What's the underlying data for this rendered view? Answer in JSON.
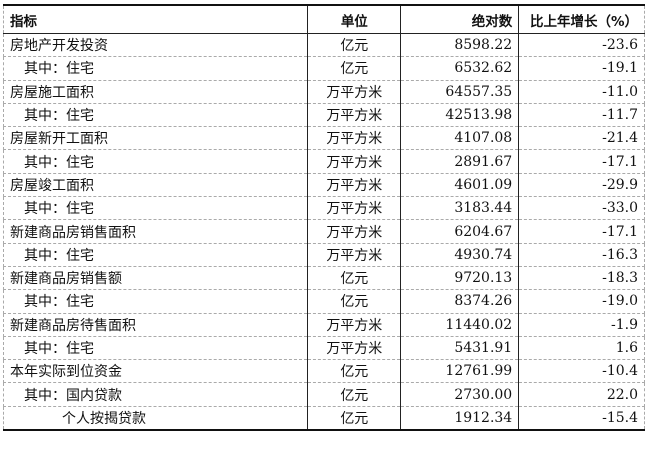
{
  "table": {
    "headers": [
      "指标",
      "单位",
      "绝对数",
      "比上年增长（%）"
    ],
    "rows": [
      {
        "indicator": "房地产开发投资",
        "unit": "亿元",
        "value": "8598.22",
        "growth": "-23.6",
        "indent": 0
      },
      {
        "indicator": "其中：住宅",
        "unit": "亿元",
        "value": "6532.62",
        "growth": "-19.1",
        "indent": 1
      },
      {
        "indicator": "房屋施工面积",
        "unit": "万平方米",
        "value": "64557.35",
        "growth": "-11.0",
        "indent": 0
      },
      {
        "indicator": "其中：住宅",
        "unit": "万平方米",
        "value": "42513.98",
        "growth": "-11.7",
        "indent": 1
      },
      {
        "indicator": "房屋新开工面积",
        "unit": "万平方米",
        "value": "4107.08",
        "growth": "-21.4",
        "indent": 0
      },
      {
        "indicator": "其中：住宅",
        "unit": "万平方米",
        "value": "2891.67",
        "growth": "-17.1",
        "indent": 1
      },
      {
        "indicator": "房屋竣工面积",
        "unit": "万平方米",
        "value": "4601.09",
        "growth": "-29.9",
        "indent": 0
      },
      {
        "indicator": "其中：住宅",
        "unit": "万平方米",
        "value": "3183.44",
        "growth": "-33.0",
        "indent": 1
      },
      {
        "indicator": "新建商品房销售面积",
        "unit": "万平方米",
        "value": "6204.67",
        "growth": "-17.1",
        "indent": 0
      },
      {
        "indicator": "其中：住宅",
        "unit": "万平方米",
        "value": "4930.74",
        "growth": "-16.3",
        "indent": 1
      },
      {
        "indicator": "新建商品房销售额",
        "unit": "亿元",
        "value": "9720.13",
        "growth": "-18.3",
        "indent": 0
      },
      {
        "indicator": "其中：住宅",
        "unit": "亿元",
        "value": "8374.26",
        "growth": "-19.0",
        "indent": 1
      },
      {
        "indicator": "新建商品房待售面积",
        "unit": "万平方米",
        "value": "11440.02",
        "growth": "-1.9",
        "indent": 0
      },
      {
        "indicator": "其中：住宅",
        "unit": "万平方米",
        "value": "5431.91",
        "growth": "1.6",
        "indent": 1
      },
      {
        "indicator": "本年实际到位资金",
        "unit": "亿元",
        "value": "12761.99",
        "growth": "-10.4",
        "indent": 0
      },
      {
        "indicator": "其中：国内贷款",
        "unit": "亿元",
        "value": "2730.00",
        "growth": "22.0",
        "indent": 1
      },
      {
        "indicator": "个人按揭贷款",
        "unit": "亿元",
        "value": "1912.34",
        "growth": "-15.4",
        "indent": 2
      }
    ]
  }
}
